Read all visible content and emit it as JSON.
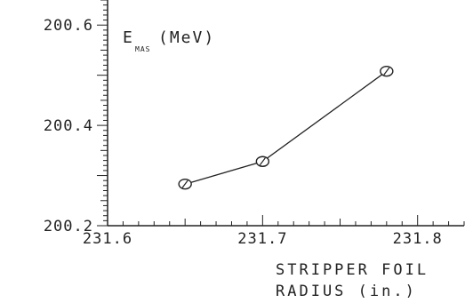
{
  "chart_data": {
    "type": "line",
    "x": [
      231.65,
      231.7,
      231.78
    ],
    "y": [
      200.283,
      200.328,
      200.508
    ],
    "xlim": [
      231.6,
      231.83
    ],
    "ylim": [
      200.2,
      200.65
    ],
    "x_ticks": [
      {
        "value": 231.6,
        "label": "231.6"
      },
      {
        "value": 231.7,
        "label": "231.7"
      },
      {
        "value": 231.8,
        "label": "231.8"
      }
    ],
    "y_ticks": [
      {
        "value": 200.2,
        "label": "200.2"
      },
      {
        "value": 200.4,
        "label": "200.4"
      },
      {
        "value": 200.6,
        "label": "200.6"
      }
    ],
    "ylabel": {
      "main": "E",
      "subscript": "MAS",
      "unit": "(MeV)"
    },
    "xlabel": {
      "line1": "STRIPPER FOIL",
      "line2": "RADIUS (in.)"
    },
    "grid": false,
    "marker": "circle-with-tick",
    "line_color": "#222222"
  }
}
